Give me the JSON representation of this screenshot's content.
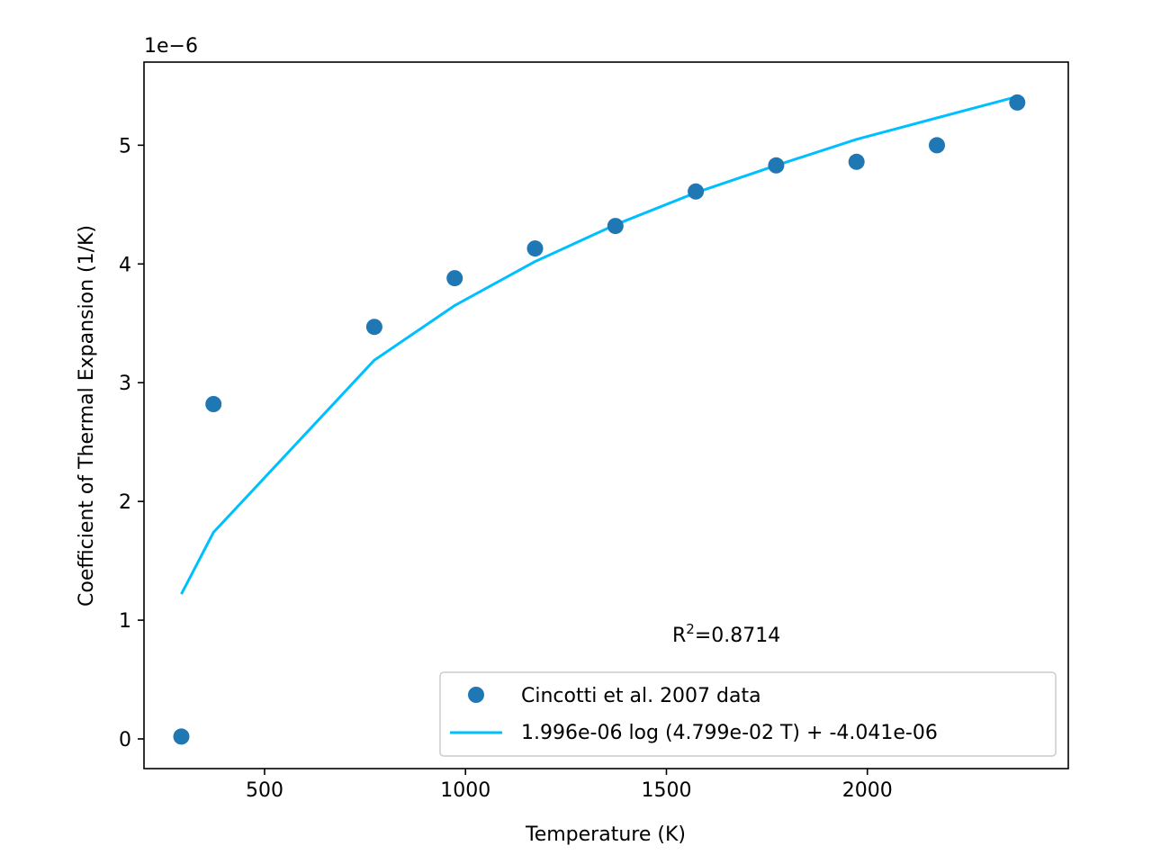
{
  "chart_data": {
    "type": "scatter",
    "title": "",
    "xlabel": "Temperature (K)",
    "ylabel": "Coefficient of Thermal Expansion (1/K)",
    "y_scale_label": "1e−6",
    "xlim": [
      200,
      2500
    ],
    "ylim": [
      -0.25,
      5.7
    ],
    "x_ticks": [
      500,
      1000,
      1500,
      2000
    ],
    "y_ticks": [
      0,
      1,
      2,
      3,
      4,
      5
    ],
    "grid": false,
    "legend_position": "lower right",
    "colors": {
      "data": "#1f77b4",
      "fit": "#00bfff"
    },
    "series": [
      {
        "name": "Cincotti et al. 2007 data",
        "kind": "scatter",
        "x": [
          293,
          373,
          773,
          973,
          1173,
          1373,
          1573,
          1773,
          1973,
          2173,
          2373
        ],
        "y": [
          0.02,
          2.82,
          3.47,
          3.88,
          4.13,
          4.32,
          4.61,
          4.83,
          4.86,
          5.0,
          5.36
        ]
      },
      {
        "name": "1.996e-06 log (4.799e-02 T) + -4.041e-06",
        "kind": "line",
        "x": [
          293,
          373,
          773,
          973,
          1173,
          1373,
          1573,
          1773,
          1973,
          2173,
          2373
        ],
        "y": [
          1.22,
          1.74,
          3.19,
          3.65,
          4.02,
          4.33,
          4.6,
          4.83,
          5.05,
          5.23,
          5.41
        ]
      }
    ],
    "annotation": {
      "base": "R",
      "sup": "2",
      "rest": "=0.8714"
    }
  }
}
